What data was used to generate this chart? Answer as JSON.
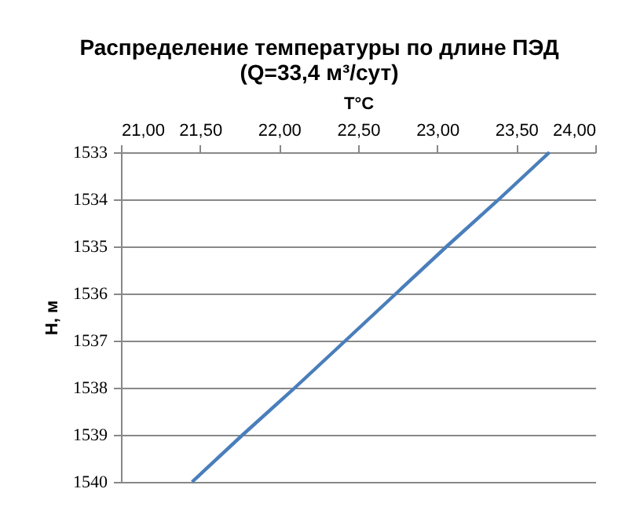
{
  "chart_data": {
    "type": "line",
    "title": "Распределение температуры по длине ПЭД",
    "subtitle": "(Q=33,4 м³/сут)",
    "xlabel": "T°C",
    "ylabel": "H, м",
    "x": [
      23.71,
      23.39,
      23.06,
      22.74,
      22.42,
      22.1,
      21.77,
      21.45
    ],
    "series": [
      {
        "color": "#4a7ebb",
        "values": [
          1533,
          1534,
          1535,
          1536,
          1537,
          1538,
          1539,
          1540
        ]
      }
    ],
    "xlim": [
      21,
      24
    ],
    "xticks": [
      {
        "value": 21,
        "label": "21,00"
      },
      {
        "value": 21.5,
        "label": "21,50"
      },
      {
        "value": 22,
        "label": "22,00"
      },
      {
        "value": 22.5,
        "label": "22,50"
      },
      {
        "value": 23,
        "label": "23,00"
      },
      {
        "value": 23.5,
        "label": "23,50"
      },
      {
        "value": 24,
        "label": "24,00"
      }
    ],
    "ylim": [
      1540,
      1533
    ],
    "yticks": [
      1533,
      1534,
      1535,
      1536,
      1537,
      1538,
      1539,
      1540
    ],
    "grid": "y",
    "marker": "none",
    "line_style": "solid"
  }
}
